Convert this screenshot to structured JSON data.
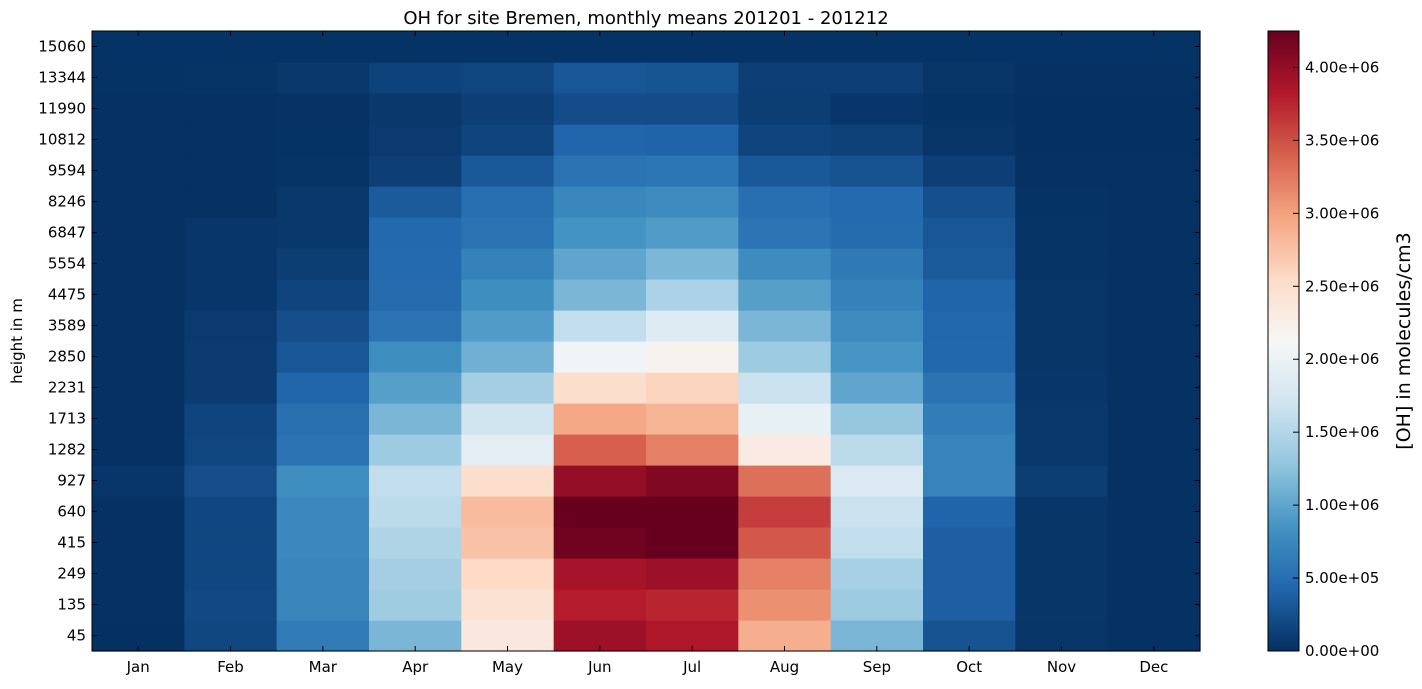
{
  "chart_data": {
    "type": "heatmap",
    "title": "OH for site Bremen, monthly means 201201 - 201212",
    "ylabel": "height in m",
    "xlabel": "",
    "colorbar_label": "[OH] in molecules/cm3",
    "colormap": "RdBu_r",
    "colormap_stops": [
      "#053061",
      "#2166ac",
      "#4393c3",
      "#92c5de",
      "#d1e5f0",
      "#f7f7f7",
      "#fddbc7",
      "#f4a582",
      "#d6604d",
      "#b2182b",
      "#67001f"
    ],
    "vmin": 0,
    "vmax": 4250000,
    "colorbar_ticks": [
      {
        "value": 0,
        "label": "0.00e+00"
      },
      {
        "value": 500000,
        "label": "5.00e+05"
      },
      {
        "value": 1000000,
        "label": "1.00e+06"
      },
      {
        "value": 1500000,
        "label": "1.50e+06"
      },
      {
        "value": 2000000,
        "label": "2.00e+06"
      },
      {
        "value": 2500000,
        "label": "2.50e+06"
      },
      {
        "value": 3000000,
        "label": "3.00e+06"
      },
      {
        "value": 3500000,
        "label": "3.50e+06"
      },
      {
        "value": 4000000,
        "label": "4.00e+06"
      }
    ],
    "x_categories": [
      "Jan",
      "Feb",
      "Mar",
      "Apr",
      "May",
      "Jun",
      "Jul",
      "Aug",
      "Sep",
      "Oct",
      "Nov",
      "Dec"
    ],
    "y_categories": [
      "45",
      "135",
      "249",
      "415",
      "640",
      "927",
      "1282",
      "1713",
      "2231",
      "2850",
      "3589",
      "4475",
      "5554",
      "6847",
      "8246",
      "9594",
      "10812",
      "11990",
      "13344",
      "15060"
    ],
    "values": [
      [
        5000,
        180000,
        620000,
        1150000,
        2350000,
        3950000,
        3850000,
        2900000,
        1150000,
        270000,
        40000,
        10000
      ],
      [
        10000,
        190000,
        720000,
        1370000,
        2450000,
        3800000,
        3750000,
        3100000,
        1350000,
        370000,
        45000,
        10000
      ],
      [
        10000,
        180000,
        720000,
        1400000,
        2550000,
        3900000,
        3950000,
        3200000,
        1420000,
        370000,
        45000,
        10000
      ],
      [
        10000,
        180000,
        750000,
        1470000,
        2750000,
        4200000,
        4280000,
        3450000,
        1600000,
        370000,
        45000,
        10000
      ],
      [
        10000,
        180000,
        750000,
        1550000,
        2800000,
        4250000,
        4300000,
        3600000,
        1650000,
        410000,
        45000,
        10000
      ],
      [
        50000,
        240000,
        800000,
        1600000,
        2500000,
        4000000,
        4100000,
        3300000,
        1800000,
        700000,
        100000,
        10000
      ],
      [
        10000,
        170000,
        550000,
        1350000,
        1900000,
        3400000,
        3200000,
        2300000,
        1550000,
        700000,
        60000,
        10000
      ],
      [
        10000,
        160000,
        520000,
        1150000,
        1700000,
        2950000,
        2850000,
        1950000,
        1300000,
        640000,
        60000,
        10000
      ],
      [
        10000,
        90000,
        420000,
        950000,
        1400000,
        2500000,
        2600000,
        1650000,
        1000000,
        550000,
        50000,
        10000
      ],
      [
        10000,
        90000,
        300000,
        800000,
        1100000,
        2050000,
        2200000,
        1350000,
        870000,
        440000,
        40000,
        10000
      ],
      [
        10000,
        80000,
        240000,
        550000,
        920000,
        1600000,
        1850000,
        1150000,
        770000,
        430000,
        40000,
        10000
      ],
      [
        10000,
        50000,
        160000,
        470000,
        800000,
        1150000,
        1450000,
        950000,
        680000,
        410000,
        40000,
        10000
      ],
      [
        10000,
        50000,
        100000,
        460000,
        680000,
        1000000,
        1160000,
        770000,
        600000,
        330000,
        30000,
        10000
      ],
      [
        10000,
        50000,
        60000,
        450000,
        540000,
        850000,
        920000,
        560000,
        480000,
        300000,
        30000,
        10000
      ],
      [
        10000,
        10000,
        60000,
        330000,
        510000,
        740000,
        770000,
        510000,
        460000,
        250000,
        20000,
        10000
      ],
      [
        10000,
        10000,
        30000,
        120000,
        320000,
        550000,
        580000,
        320000,
        270000,
        120000,
        10000,
        10000
      ],
      [
        10000,
        10000,
        20000,
        80000,
        160000,
        420000,
        400000,
        160000,
        130000,
        40000,
        5000,
        5000
      ],
      [
        10000,
        10000,
        15000,
        60000,
        120000,
        220000,
        220000,
        110000,
        50000,
        20000,
        5000,
        5000
      ],
      [
        20000,
        30000,
        60000,
        140000,
        170000,
        300000,
        280000,
        120000,
        120000,
        40000,
        10000,
        10000
      ],
      [
        20000,
        20000,
        20000,
        20000,
        20000,
        20000,
        20000,
        20000,
        20000,
        20000,
        20000,
        20000
      ]
    ]
  }
}
